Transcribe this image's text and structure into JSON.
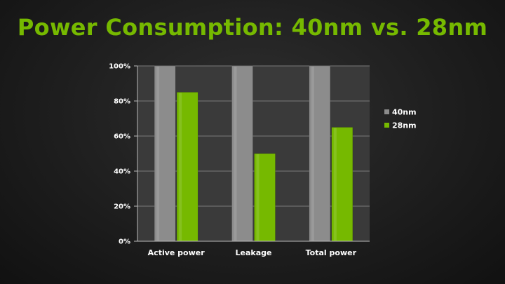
{
  "title": "Power Consumption: 40nm vs. 28nm",
  "colors": {
    "title": "#76b900",
    "series_40nm": "#8c8c8c",
    "series_28nm": "#76b900",
    "plot_bg": "#3a3a3a",
    "grid": "#7a7a7a"
  },
  "chart_data": {
    "type": "bar",
    "categories": [
      "Active power",
      "Leakage",
      "Total power"
    ],
    "series": [
      {
        "name": "40nm",
        "values": [
          100,
          100,
          100
        ]
      },
      {
        "name": "28nm",
        "values": [
          85,
          50,
          65
        ]
      }
    ],
    "yticks": [
      "0%",
      "20%",
      "40%",
      "60%",
      "80%",
      "100%"
    ],
    "ylim": [
      0,
      100
    ],
    "grid": true,
    "legend": "right"
  }
}
